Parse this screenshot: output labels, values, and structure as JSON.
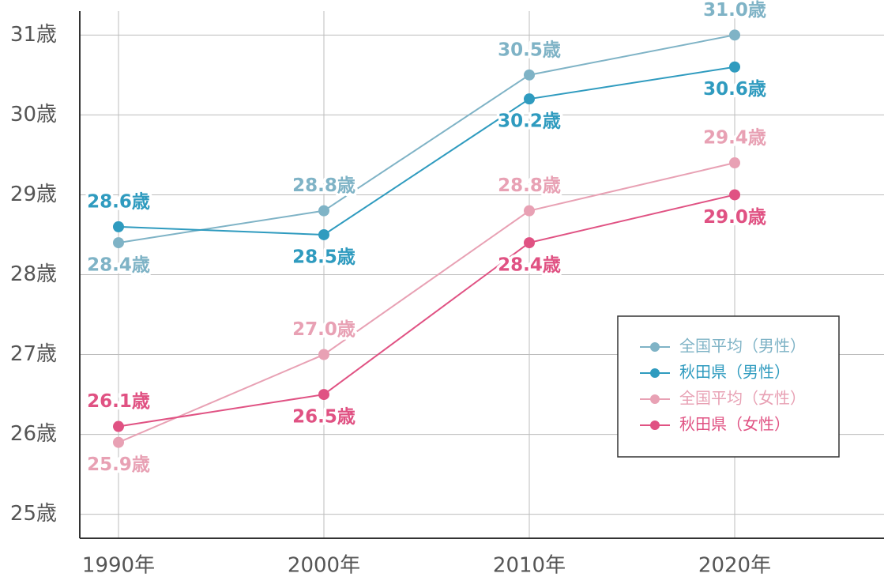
{
  "chart_data": {
    "type": "line",
    "categories": [
      "1990年",
      "2000年",
      "2010年",
      "2020年"
    ],
    "y_ticks": [
      "25歳",
      "26歳",
      "27歳",
      "28歳",
      "29歳",
      "30歳",
      "31歳"
    ],
    "ylim": [
      24.7,
      31.3
    ],
    "grid": true,
    "legend_position": "right",
    "value_suffix": "歳",
    "series": [
      {
        "name": "全国平均（男性）",
        "color": "#7fb3c6",
        "values": [
          28.4,
          28.8,
          30.5,
          31.0
        ],
        "label_positions": [
          "below",
          "above",
          "above",
          "above"
        ]
      },
      {
        "name": "秋田県（男性）",
        "color": "#2f9bbf",
        "values": [
          28.6,
          28.5,
          30.2,
          30.6
        ],
        "label_positions": [
          "above",
          "below",
          "below",
          "below"
        ]
      },
      {
        "name": "全国平均（女性）",
        "color": "#e8a1b4",
        "values": [
          25.9,
          27.0,
          28.8,
          29.4
        ],
        "label_positions": [
          "below",
          "above",
          "above",
          "above"
        ]
      },
      {
        "name": "秋田県（女性）",
        "color": "#e05283",
        "values": [
          26.1,
          26.5,
          28.4,
          29.0
        ],
        "label_positions": [
          "above",
          "below",
          "below",
          "below"
        ]
      }
    ]
  }
}
